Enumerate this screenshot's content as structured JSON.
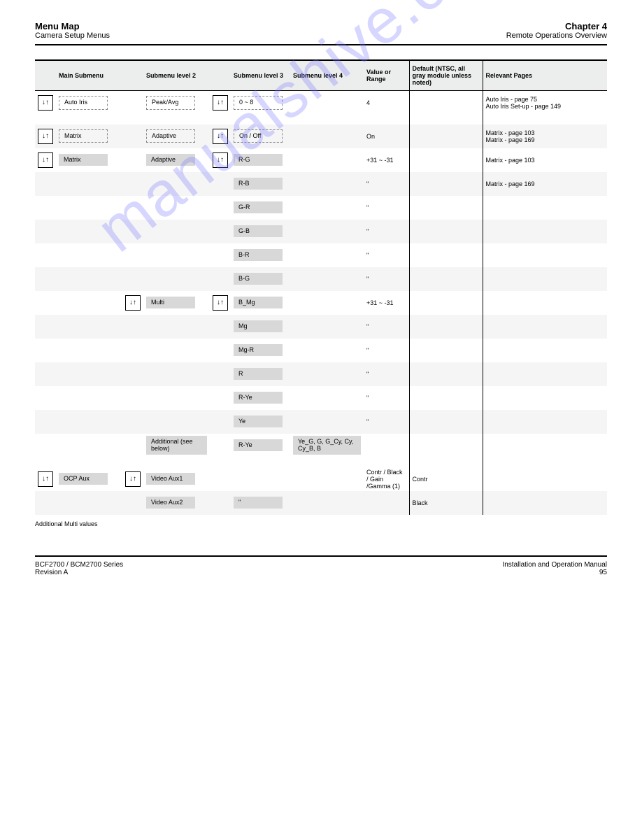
{
  "header": {
    "title": "Menu Map",
    "subtitle": "Camera Setup Menus",
    "chapter": "Chapter 4",
    "chapter_sub": "Remote Operations Overview"
  },
  "columns": {
    "c1": "Main Submenu",
    "c2": "",
    "c3": "Submenu level 2",
    "c4": "",
    "c5": "Submenu level 3",
    "c6": "Submenu level 4",
    "c7": "Value or Range",
    "c8": "Default (NTSC, all gray module unless noted)",
    "c9": "Relevant Pages"
  },
  "rows": [
    {
      "type": "plain",
      "icon1": true,
      "s1": "Auto Iris",
      "icon2": false,
      "s2": "Peak/Avg",
      "icon3": true,
      "s3": "0 ~ 8",
      "s4": "",
      "range": "4",
      "def": "",
      "pages": "Auto Iris - page 75\nAuto Iris Set-up - page 149"
    },
    {
      "type": "section"
    },
    {
      "type": "alt",
      "icon1": true,
      "s1": "Matrix",
      "icon2": false,
      "s2": "Adaptive",
      "icon3": true,
      "s3": "On / Off",
      "s4": "",
      "range": "On",
      "def": "",
      "pages": "Matrix - page 103\nMatrix - page 169"
    },
    {
      "type": "plain",
      "icon1": true,
      "s1": "Matrix",
      "s1cls": "shaded",
      "icon2": false,
      "s2": "Adaptive",
      "s2cls": "shaded",
      "icon3": true,
      "s3": "R-G",
      "s3cls": "shaded",
      "s4": "",
      "range": "+31 ~ -31",
      "def": "",
      "pages": "Matrix - page 103"
    },
    {
      "type": "alt",
      "icon1": false,
      "s1": "",
      "icon2": false,
      "s2": "",
      "icon3": false,
      "s3": "R-B",
      "s3cls": "shaded",
      "s4": "",
      "range": "\"",
      "def": "",
      "pages": "Matrix - page 169"
    },
    {
      "type": "plain",
      "icon1": false,
      "s1": "",
      "icon2": false,
      "s2": "",
      "icon3": false,
      "s3": "G-R",
      "s3cls": "shaded",
      "s4": "",
      "range": "\"",
      "def": "",
      "pages": ""
    },
    {
      "type": "alt",
      "icon1": false,
      "s1": "",
      "icon2": false,
      "s2": "",
      "icon3": false,
      "s3": "G-B",
      "s3cls": "shaded",
      "s4": "",
      "range": "\"",
      "def": "",
      "pages": ""
    },
    {
      "type": "plain",
      "icon1": false,
      "s1": "",
      "icon2": false,
      "s2": "",
      "icon3": false,
      "s3": "B-R",
      "s3cls": "shaded",
      "s4": "",
      "range": "\"",
      "def": "",
      "pages": ""
    },
    {
      "type": "alt",
      "icon1": false,
      "s1": "",
      "icon2": false,
      "s2": "",
      "icon3": false,
      "s3": "B-G",
      "s3cls": "shaded",
      "s4": "",
      "range": "\"",
      "def": "",
      "pages": ""
    },
    {
      "type": "plain",
      "icon1": false,
      "s1": "",
      "icon2": true,
      "s2": "Multi",
      "s2cls": "shaded",
      "icon3": true,
      "s3": "B_Mg",
      "s3cls": "shaded",
      "s4": "",
      "range": "+31 ~ -31",
      "def": "",
      "pages": ""
    },
    {
      "type": "alt",
      "icon1": false,
      "s1": "",
      "icon2": false,
      "s2": "",
      "icon3": false,
      "s3": "Mg",
      "s3cls": "shaded",
      "s4": "",
      "range": "\"",
      "def": "",
      "pages": ""
    },
    {
      "type": "plain",
      "icon1": false,
      "s1": "",
      "icon2": false,
      "s2": "",
      "icon3": false,
      "s3": "Mg-R",
      "s3cls": "shaded",
      "s4": "",
      "range": "\"",
      "def": "",
      "pages": ""
    },
    {
      "type": "alt",
      "icon1": false,
      "s1": "",
      "icon2": false,
      "s2": "",
      "icon3": false,
      "s3": "R",
      "s3cls": "shaded",
      "s4": "",
      "range": "\"",
      "def": "",
      "pages": ""
    },
    {
      "type": "plain",
      "icon1": false,
      "s1": "",
      "icon2": false,
      "s2": "",
      "icon3": false,
      "s3": "R-Ye",
      "s3cls": "shaded",
      "s4": "",
      "range": "\"",
      "def": "",
      "pages": ""
    },
    {
      "type": "alt",
      "icon1": false,
      "s1": "",
      "icon2": false,
      "s2": "",
      "icon3": false,
      "s3": "Ye",
      "s3cls": "shaded",
      "s4": "",
      "range": "\"",
      "def": "",
      "pages": ""
    },
    {
      "type": "plain",
      "icon1": false,
      "s1": "",
      "icon2": false,
      "s2": "Additional (see below)",
      "s2cls": "shaded",
      "icon3": false,
      "s3": "R-Ye",
      "s3cls": "shaded",
      "s4": "Ye_G, G, G_Cy, Cy, Cy_B, B",
      "s4cls": "shaded",
      "range": "",
      "def": "",
      "pages": ""
    },
    {
      "type": "section"
    },
    {
      "type": "plain",
      "icon1": true,
      "s1": "OCP Aux",
      "s1cls": "shaded",
      "icon2": true,
      "s2": "Video Aux1",
      "s2cls": "shaded",
      "icon3": false,
      "s3": "",
      "s4": "",
      "range": "Contr / Black / Gain /Gamma (1)",
      "def": "Contr",
      "pages": ""
    },
    {
      "type": "alt",
      "icon1": false,
      "s1": "",
      "icon2": false,
      "s2": "Video Aux2",
      "s2cls": "shaded",
      "icon3": false,
      "s3": "\"",
      "s3cls": "shaded",
      "s4": "",
      "range": "",
      "def": "Black",
      "pages": ""
    }
  ],
  "footnote": "Additional Multi values",
  "footer": {
    "series": "BCF2700 / BCM2700 Series",
    "rev": "Revision A",
    "manual": "Installation and Operation Manual",
    "page": "95"
  },
  "colors": {
    "watermark": "rgba(120,120,255,0.30)",
    "header_bg": "#eceded",
    "shaded_bg": "#d8d8d8",
    "alt_row_bg": "#f5f5f5"
  }
}
